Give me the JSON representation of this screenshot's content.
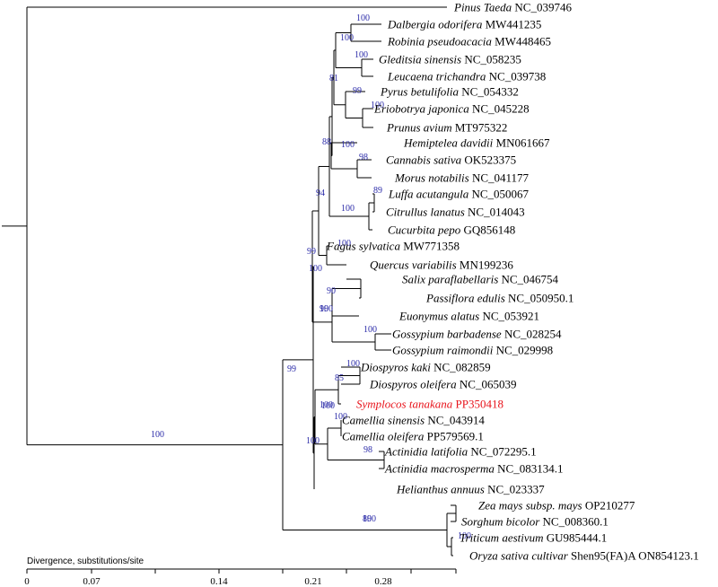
{
  "axis": {
    "label": "Divergence, substitutions/site",
    "ticks": [
      "0",
      "0.07",
      "0.14",
      "0.21",
      "0.28"
    ]
  },
  "taxa": [
    {
      "species": "Pinus Taeda",
      "accession": "NC_039746",
      "color": "#000000"
    },
    {
      "species": "Dalbergia odorifera",
      "accession": "MW441235",
      "color": "#000000"
    },
    {
      "species": "Robinia pseudoacacia",
      "accession": "MW448465",
      "color": "#000000"
    },
    {
      "species": "Gleditsia sinensis",
      "accession": "NC_058235",
      "color": "#000000"
    },
    {
      "species": "Leucaena trichandra",
      "accession": "NC_039738",
      "color": "#000000"
    },
    {
      "species": "Pyrus betulifolia",
      "accession": "NC_054332",
      "color": "#000000"
    },
    {
      "species": "Eriobotrya japonica",
      "accession": "NC_045228",
      "color": "#000000"
    },
    {
      "species": "Prunus avium",
      "accession": "MT975322",
      "color": "#000000"
    },
    {
      "species": "Hemiptelea davidii",
      "accession": "MN061667",
      "color": "#000000"
    },
    {
      "species": "Cannabis sativa",
      "accession": "OK523375",
      "color": "#000000"
    },
    {
      "species": "Morus notabilis",
      "accession": "NC_041177",
      "color": "#000000"
    },
    {
      "species": "Luffa acutangula",
      "accession": "NC_050067",
      "color": "#000000"
    },
    {
      "species": "Citrullus lanatus",
      "accession": "NC_014043",
      "color": "#000000"
    },
    {
      "species": "Cucurbita pepo",
      "accession": "GQ856148",
      "color": "#000000"
    },
    {
      "species": "Fagus sylvatica",
      "accession": "MW771358",
      "color": "#000000"
    },
    {
      "species": "Quercus variabilis",
      "accession": "MN199236",
      "color": "#000000"
    },
    {
      "species": "Salix paraflabellaris",
      "accession": "NC_046754",
      "color": "#000000"
    },
    {
      "species": "Passiflora edulis",
      "accession": "NC_050950.1",
      "color": "#000000"
    },
    {
      "species": "Euonymus alatus",
      "accession": "NC_053921",
      "color": "#000000"
    },
    {
      "species": "Gossypium barbadense",
      "accession": "NC_028254",
      "color": "#000000"
    },
    {
      "species": "Gossypium raimondii",
      "accession": "NC_029998",
      "color": "#000000"
    },
    {
      "species": "Diospyros kaki",
      "accession": "NC_082859",
      "color": "#000000"
    },
    {
      "species": "Diospyros oleifera",
      "accession": "NC_065039",
      "color": "#000000"
    },
    {
      "species": "Symplocos tanakana",
      "accession": "PP350418",
      "color": "#e8141c"
    },
    {
      "species": "Camellia sinensis",
      "accession": "NC_043914",
      "color": "#000000"
    },
    {
      "species": "Camellia oleifera",
      "accession": "PP579569.1",
      "color": "#000000"
    },
    {
      "species": "Actinidia latifolia",
      "accession": "NC_072295.1",
      "color": "#000000"
    },
    {
      "species": "Actinidia macrosperma",
      "accession": " NC_083134.1",
      "color": "#000000"
    },
    {
      "species": "Helianthus annuus",
      "accession": "NC_023337",
      "color": "#000000"
    },
    {
      "species": "Zea mays subsp. mays",
      "accession": "OP210277",
      "color": "#000000"
    },
    {
      "species": "Sorghum bicolor",
      "accession": "NC_008360.1",
      "color": "#000000"
    },
    {
      "species": "Triticum aestivum",
      "accession": "GU985444.1",
      "color": "#000000"
    },
    {
      "species": "Oryza sativa cultivar",
      "accession": "Shen95(FA)A ON854123.1",
      "color": "#000000"
    }
  ],
  "bootstrap": [
    "100",
    "100",
    "100",
    "81",
    "100",
    "99",
    "100",
    "98",
    "88",
    "89",
    "100",
    "94",
    "100",
    "99",
    "90",
    "99",
    "100",
    "100",
    "100",
    "85",
    "100",
    "100",
    "100",
    "98",
    "100",
    "100",
    "99",
    "100",
    "100",
    "89",
    "100"
  ]
}
